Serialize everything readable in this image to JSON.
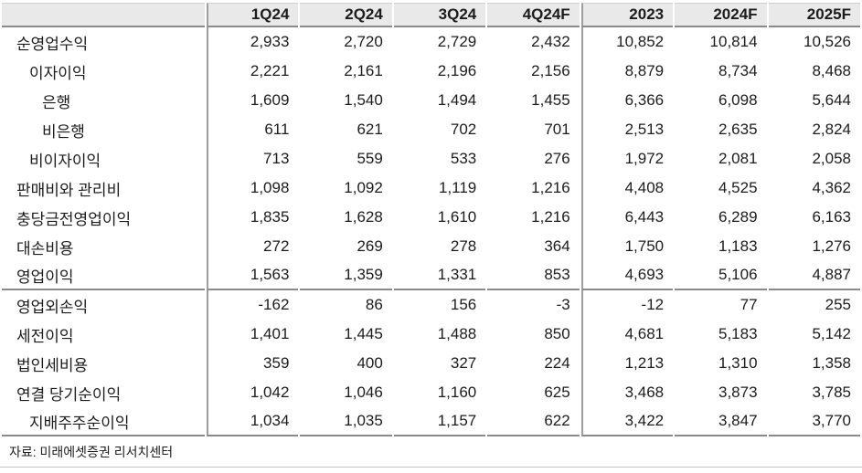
{
  "table": {
    "columns": [
      "",
      "1Q24",
      "2Q24",
      "3Q24",
      "4Q24F",
      "2023",
      "2024F",
      "2025F"
    ],
    "rows": [
      {
        "label": "순영업수익",
        "indent": 0,
        "values": [
          "2,933",
          "2,720",
          "2,729",
          "2,432",
          "10,852",
          "10,814",
          "10,526"
        ]
      },
      {
        "label": "이자이익",
        "indent": 1,
        "values": [
          "2,221",
          "2,161",
          "2,196",
          "2,156",
          "8,879",
          "8,734",
          "8,468"
        ]
      },
      {
        "label": "은행",
        "indent": 2,
        "values": [
          "1,609",
          "1,540",
          "1,494",
          "1,455",
          "6,366",
          "6,098",
          "5,644"
        ]
      },
      {
        "label": "비은행",
        "indent": 2,
        "values": [
          "611",
          "621",
          "702",
          "701",
          "2,513",
          "2,635",
          "2,824"
        ]
      },
      {
        "label": "비이자이익",
        "indent": 1,
        "values": [
          "713",
          "559",
          "533",
          "276",
          "1,972",
          "2,081",
          "2,058"
        ]
      },
      {
        "label": "판매비와 관리비",
        "indent": 0,
        "values": [
          "1,098",
          "1,092",
          "1,119",
          "1,216",
          "4,408",
          "4,525",
          "4,362"
        ]
      },
      {
        "label": "충당금전영업이익",
        "indent": 0,
        "values": [
          "1,835",
          "1,628",
          "1,610",
          "1,216",
          "6,443",
          "6,289",
          "6,163"
        ]
      },
      {
        "label": "대손비용",
        "indent": 0,
        "values": [
          "272",
          "269",
          "278",
          "364",
          "1,750",
          "1,183",
          "1,276"
        ]
      },
      {
        "label": "영업이익",
        "indent": 0,
        "section_end": true,
        "values": [
          "1,563",
          "1,359",
          "1,331",
          "853",
          "4,693",
          "5,106",
          "4,887"
        ]
      },
      {
        "label": "영업외손익",
        "indent": 0,
        "values": [
          "-162",
          "86",
          "156",
          "-3",
          "-12",
          "77",
          "255"
        ]
      },
      {
        "label": "세전이익",
        "indent": 0,
        "values": [
          "1,401",
          "1,445",
          "1,488",
          "850",
          "4,681",
          "5,183",
          "5,142"
        ]
      },
      {
        "label": "법인세비용",
        "indent": 0,
        "values": [
          "359",
          "400",
          "327",
          "224",
          "1,213",
          "1,310",
          "1,358"
        ]
      },
      {
        "label": "연결 당기순이익",
        "indent": 0,
        "values": [
          "1,042",
          "1,046",
          "1,160",
          "625",
          "3,468",
          "3,873",
          "3,785"
        ]
      },
      {
        "label": "지배주주순이익",
        "indent": 1,
        "values": [
          "1,034",
          "1,035",
          "1,157",
          "622",
          "3,422",
          "3,847",
          "3,770"
        ]
      }
    ]
  },
  "footer": {
    "source": "자료: 미래에셋증권 리서치센터"
  },
  "colors": {
    "header_bg": "#e9e9e9",
    "line_dark": "#8a8a8a",
    "line_vertical": "#9e9e9e",
    "page_rule": "#c4c4c4",
    "text": "#1c1c1c"
  }
}
